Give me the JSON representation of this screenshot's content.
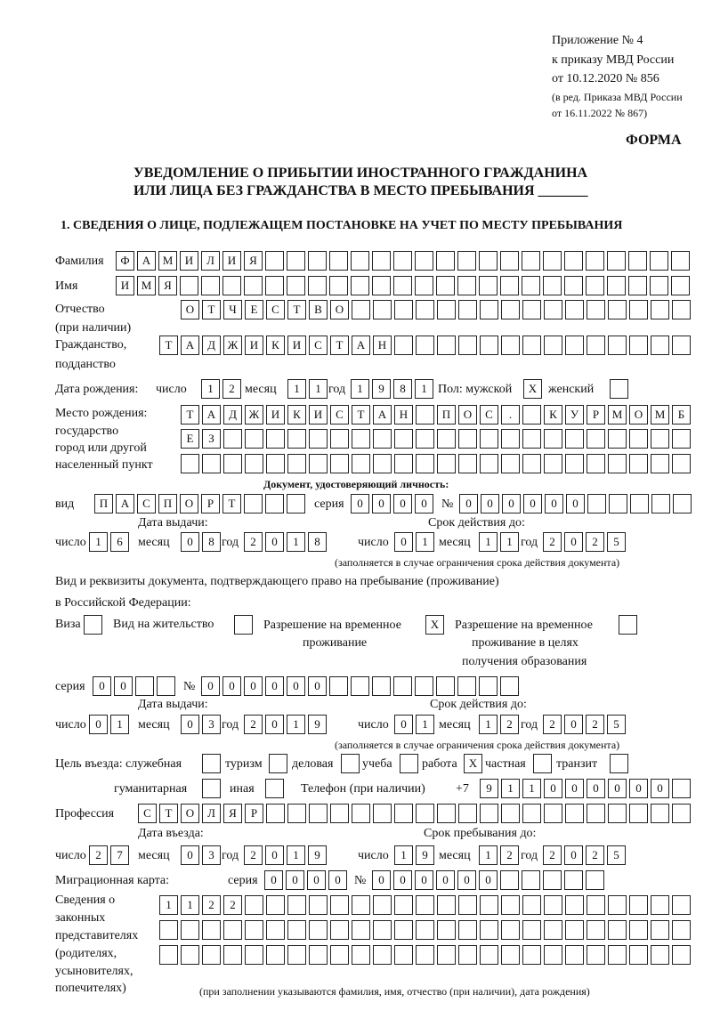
{
  "header": {
    "appendix": "Приложение № 4",
    "order": "к приказу МВД России",
    "order_date": "от 10.12.2020 № 856",
    "revision_1": "(в ред. Приказа МВД России",
    "revision_2": "от 16.11.2022 № 867)",
    "form_label": "ФОРМА",
    "title_1": "УВЕДОМЛЕНИЕ О ПРИБЫТИИ ИНОСТРАННОГО ГРАЖДАНИНА",
    "title_2": "ИЛИ ЛИЦА БЕЗ ГРАЖДАНСТВА В МЕСТО ПРЕБЫВАНИЯ _______",
    "section_1": "1. СВЕДЕНИЯ О ЛИЦЕ, ПОДЛЕЖАЩЕМ ПОСТАНОВКЕ НА УЧЕТ ПО МЕСТУ ПРЕБЫВАНИЯ"
  },
  "labels": {
    "surname": "Фамилия",
    "name": "Имя",
    "patronymic": "Отчество",
    "patronymic_note": "(при наличии)",
    "citizenship": "Гражданство,",
    "citizenship_2": "подданство",
    "birth_date": "Дата рождения:",
    "day": "число",
    "month": "месяц",
    "year": "год",
    "sex": "Пол: мужской",
    "female": "женский",
    "birthplace": "Место рождения:",
    "birthplace_2": "государство",
    "birthplace_3": "город или другой",
    "birthplace_4": "населенный пункт",
    "id_doc": "Документ, удостоверяющий личность:",
    "kind": "вид",
    "series": "серия",
    "number": "№",
    "issue_date": "Дата выдачи:",
    "valid_until": "Срок действия до:",
    "validity_note": "(заполняется в случае ограничения срока действия документа)",
    "stay_doc_1": "Вид и реквизиты документа, подтверждающего право на пребывание (проживание)",
    "stay_doc_2": "в Российской Федерации:",
    "visa": "Виза",
    "residence": "Вид на жительство",
    "trp_1": "Разрешение на временное",
    "trp_2": "проживание",
    "trp_edu_1": "Разрешение на временное",
    "trp_edu_2": "проживание в целях",
    "trp_edu_3": "получения образования",
    "purpose": "Цель въезда: служебная",
    "tourism": "туризм",
    "business": "деловая",
    "study": "учеба",
    "work": "работа",
    "private": "частная",
    "transit": "транзит",
    "humanitarian": "гуманитарная",
    "other": "иная",
    "phone": "Телефон (при наличии)",
    "phone_prefix": "+7",
    "profession": "Профессия",
    "entry_date": "Дата въезда:",
    "stay_until": "Срок пребывания до:",
    "migration_card": "Миграционная карта:",
    "reps_1": "Сведения о",
    "reps_2": "законных",
    "reps_3": "представителях",
    "reps_4": "(родителях,",
    "reps_5": "усыновителях,",
    "reps_6": "попечителях)",
    "reps_note": "(при заполнении указываются фамилия, имя, отчество (при наличии), дата рождения)"
  },
  "values": {
    "surname": "ФАМИЛИЯ",
    "name": "ИМЯ",
    "patronymic": "ОТЧЕСТВО",
    "citizenship": "ТАДЖИКИСТАН",
    "birth_day": "12",
    "birth_month": "11",
    "birth_year": "1981",
    "sex_male": "X",
    "sex_female": "",
    "birthplace_1": "ТАДЖИКИСТАН ПОС. КУРМОМБ",
    "birthplace_2": "ЕЗ",
    "birthplace_3": "",
    "id_kind": "ПАСПОРТ",
    "id_series": "0000",
    "id_number": "000000",
    "id_issue_day": "16",
    "id_issue_month": "08",
    "id_issue_year": "2018",
    "id_valid_day": "01",
    "id_valid_month": "11",
    "id_valid_year": "2025",
    "visa": "",
    "residence": "",
    "trp": "X",
    "trp_edu": "",
    "stay_series": "00",
    "stay_number": "000000",
    "stay_issue_day": "01",
    "stay_issue_month": "03",
    "stay_issue_year": "2019",
    "stay_valid_day": "01",
    "stay_valid_month": "12",
    "stay_valid_year": "2025",
    "purpose_official": "",
    "purpose_tourism": "",
    "purpose_business": "",
    "purpose_study": "",
    "purpose_work": "X",
    "purpose_private": "",
    "purpose_transit": "",
    "purpose_humanitarian": "",
    "purpose_other": "",
    "phone": "911000000",
    "profession": "СТОЛЯР",
    "entry_day": "27",
    "entry_month": "03",
    "entry_year": "2019",
    "stay_until_day": "19",
    "stay_until_month": "12",
    "stay_until_year": "2025",
    "mc_series": "0000",
    "mc_number": "000000",
    "reps_1": "1122",
    "reps_2": "",
    "reps_3": ""
  }
}
